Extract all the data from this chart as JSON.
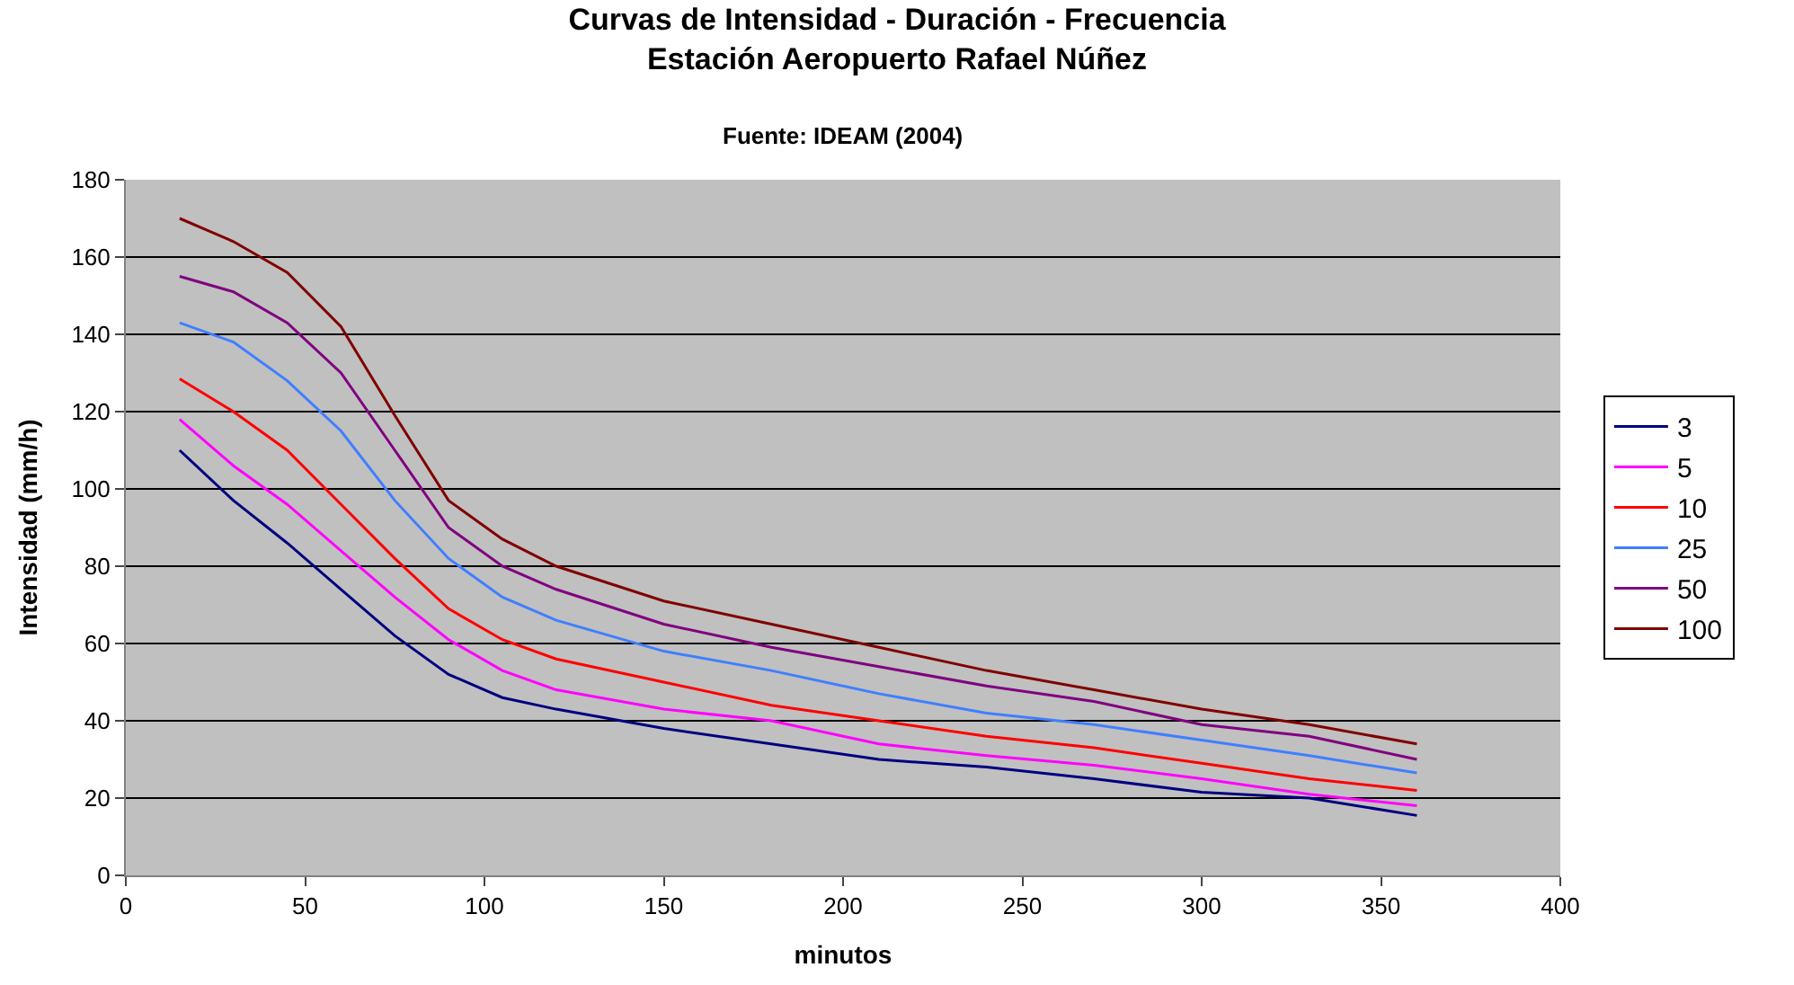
{
  "chart_data": {
    "type": "line",
    "title": "Curvas de Intensidad - Duración - Frecuencia",
    "subtitle": "Estación Aeropuerto Rafael Núñez",
    "annotations": [
      "Fuente: IDEAM (2004)"
    ],
    "xlabel": "minutos",
    "ylabel": "Intensidad (mm/h)",
    "x": [
      15,
      30,
      45,
      60,
      75,
      90,
      105,
      120,
      150,
      180,
      210,
      240,
      270,
      300,
      330,
      360
    ],
    "xlim": [
      0,
      400
    ],
    "xticks": [
      0,
      50,
      100,
      150,
      200,
      250,
      300,
      350,
      400
    ],
    "ylim": [
      0,
      180
    ],
    "yticks": [
      0,
      20,
      40,
      60,
      80,
      100,
      120,
      140,
      160,
      180
    ],
    "grid": "y",
    "legend": "right",
    "marker": "none",
    "line_style": "solid",
    "series": [
      {
        "name": "3",
        "color": "#000080",
        "values": [
          110,
          97,
          86,
          74,
          62,
          52,
          46,
          43,
          38,
          34,
          30,
          28,
          25,
          21.5,
          20,
          15.5
        ]
      },
      {
        "name": "5",
        "color": "#ff00ff",
        "values": [
          118,
          106,
          96,
          84,
          72,
          61,
          53,
          48,
          43,
          40,
          34,
          31,
          28.5,
          25,
          21,
          18
        ]
      },
      {
        "name": "10",
        "color": "#ff0000",
        "values": [
          128.5,
          120,
          110,
          96,
          82,
          69,
          61,
          56,
          50,
          44,
          40,
          36,
          33,
          29,
          25,
          22
        ]
      },
      {
        "name": "25",
        "color": "#3f7fff",
        "values": [
          143,
          138,
          128,
          115,
          97,
          82,
          72,
          66,
          58,
          53,
          47,
          42,
          39,
          35,
          31,
          26.5
        ]
      },
      {
        "name": "50",
        "color": "#800080",
        "values": [
          155,
          151,
          143,
          130,
          110,
          90,
          80,
          74,
          65,
          59,
          54,
          49,
          45,
          39,
          36,
          30
        ]
      },
      {
        "name": "100",
        "color": "#800000",
        "values": [
          170,
          164,
          156,
          142,
          119,
          97,
          87,
          80,
          71,
          65,
          59,
          53,
          48,
          43,
          39,
          34
        ]
      }
    ]
  }
}
